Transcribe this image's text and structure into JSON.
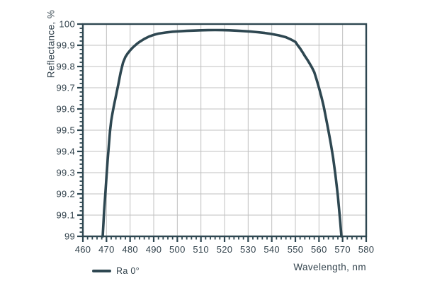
{
  "chart_data": {
    "type": "line",
    "title": "",
    "xlabel": "Wavelength, nm",
    "ylabel": "Reflectance, %",
    "xlim": [
      460,
      580
    ],
    "ylim": [
      99,
      100
    ],
    "grid": true,
    "x_minor_step": 2,
    "y_minor_step": 0.02,
    "x_ticks": [
      {
        "v": 460,
        "label": "460"
      },
      {
        "v": 470,
        "label": "470"
      },
      {
        "v": 480,
        "label": "480"
      },
      {
        "v": 490,
        "label": "490"
      },
      {
        "v": 500,
        "label": "500"
      },
      {
        "v": 510,
        "label": "510"
      },
      {
        "v": 520,
        "label": "520"
      },
      {
        "v": 530,
        "label": "530"
      },
      {
        "v": 540,
        "label": "540"
      },
      {
        "v": 550,
        "label": "550"
      },
      {
        "v": 560,
        "label": "560"
      },
      {
        "v": 570,
        "label": "570"
      },
      {
        "v": 580,
        "label": "580"
      }
    ],
    "y_ticks": [
      {
        "v": 100,
        "label": "100"
      },
      {
        "v": 99.9,
        "label": "99.9"
      },
      {
        "v": 99.8,
        "label": "99.8"
      },
      {
        "v": 99.7,
        "label": "99.7"
      },
      {
        "v": 99.6,
        "label": "99.6"
      },
      {
        "v": 99.5,
        "label": "99.5"
      },
      {
        "v": 99.4,
        "label": "99.4"
      },
      {
        "v": 99.3,
        "label": "99.3"
      },
      {
        "v": 99.2,
        "label": "99.2"
      },
      {
        "v": 99.1,
        "label": "99.1"
      },
      {
        "v": 99,
        "label": "99"
      }
    ],
    "legend": {
      "position": "bottom-left",
      "entries": [
        {
          "label": "Ra 0°",
          "color": "#2e4751"
        }
      ]
    },
    "colors": {
      "frame": "#2e4751",
      "grid": "#c0c0c0",
      "text": "#33434d",
      "background": "#ffffff"
    },
    "series": [
      {
        "name": "Ra 0°",
        "color": "#2e4751",
        "points": [
          [
            468.4,
            99.0
          ],
          [
            468.7,
            99.06
          ],
          [
            469,
            99.12
          ],
          [
            469.5,
            99.2
          ],
          [
            470,
            99.28
          ],
          [
            470.5,
            99.36
          ],
          [
            471,
            99.43
          ],
          [
            471.5,
            99.495
          ],
          [
            472,
            99.545
          ],
          [
            472.5,
            99.578
          ],
          [
            473,
            99.607
          ],
          [
            474,
            99.662
          ],
          [
            475,
            99.715
          ],
          [
            476,
            99.772
          ],
          [
            477,
            99.818
          ],
          [
            478,
            99.845
          ],
          [
            479,
            99.862
          ],
          [
            480,
            99.876
          ],
          [
            481,
            99.888
          ],
          [
            482,
            99.898
          ],
          [
            483,
            99.908
          ],
          [
            484,
            99.916
          ],
          [
            485,
            99.923
          ],
          [
            486,
            99.93
          ],
          [
            488,
            99.941
          ],
          [
            490,
            99.949
          ],
          [
            492,
            99.955
          ],
          [
            495,
            99.96
          ],
          [
            498,
            99.964
          ],
          [
            501,
            99.966
          ],
          [
            504,
            99.968
          ],
          [
            507,
            99.9695
          ],
          [
            510,
            99.9705
          ],
          [
            513,
            99.9712
          ],
          [
            516,
            99.9715
          ],
          [
            519,
            99.9713
          ],
          [
            522,
            99.9705
          ],
          [
            525,
            99.969
          ],
          [
            528,
            99.967
          ],
          [
            531,
            99.9645
          ],
          [
            534,
            99.9615
          ],
          [
            537,
            99.958
          ],
          [
            540,
            99.953
          ],
          [
            543,
            99.9465
          ],
          [
            546,
            99.938
          ],
          [
            548,
            99.928
          ],
          [
            550,
            99.916
          ],
          [
            551,
            99.9
          ],
          [
            552,
            99.885
          ],
          [
            553,
            99.868
          ],
          [
            554,
            99.85
          ],
          [
            555,
            99.833
          ],
          [
            556,
            99.815
          ],
          [
            557,
            99.796
          ],
          [
            558,
            99.773
          ],
          [
            559,
            99.738
          ],
          [
            560,
            99.7
          ],
          [
            561,
            99.658
          ],
          [
            562,
            99.612
          ],
          [
            563,
            99.556
          ],
          [
            564,
            99.497
          ],
          [
            565,
            99.437
          ],
          [
            566,
            99.37
          ],
          [
            567,
            99.285
          ],
          [
            568,
            99.19
          ],
          [
            569,
            99.07
          ],
          [
            569.5,
            99.0
          ]
        ]
      }
    ]
  }
}
